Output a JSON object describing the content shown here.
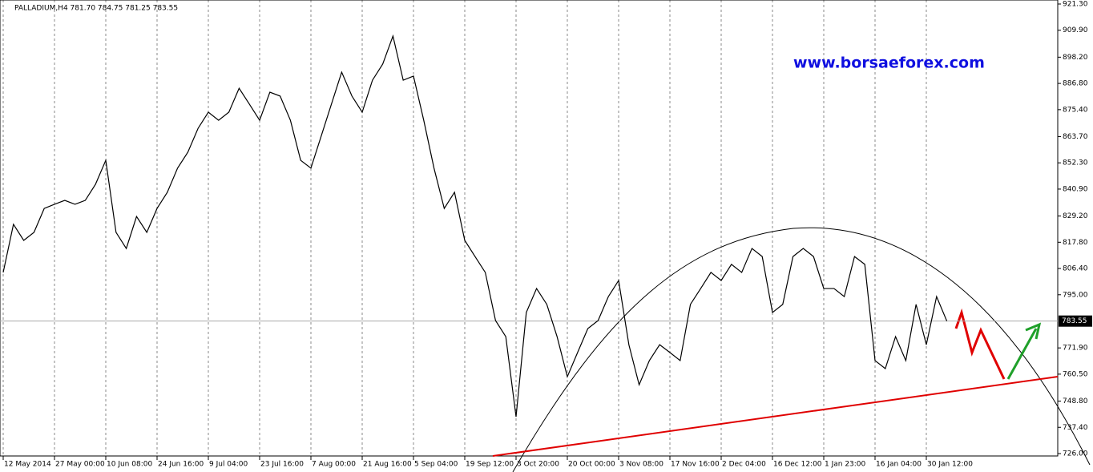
{
  "chart_data": {
    "type": "line",
    "title": "PALLADIUM,H4  781.70 784.75 781.25 783.55",
    "watermark": "www.borsaeforex.com",
    "categories": [
      "12 May 2014",
      null,
      null,
      null,
      null,
      "27 May 00:00",
      null,
      null,
      null,
      null,
      "10 Jun 08:00",
      null,
      null,
      null,
      null,
      "24 Jun 16:00",
      null,
      null,
      null,
      null,
      "9 Jul 04:00",
      null,
      null,
      null,
      null,
      "23 Jul 16:00",
      null,
      null,
      null,
      null,
      "7 Aug 00:00",
      null,
      null,
      null,
      null,
      "21 Aug 16:00",
      null,
      null,
      null,
      null,
      "5 Sep 04:00",
      null,
      null,
      null,
      null,
      "19 Sep 12:00",
      null,
      null,
      null,
      null,
      "3 Oct 20:00",
      null,
      null,
      null,
      null,
      "20 Oct 00:00",
      null,
      null,
      null,
      null,
      "3 Nov 08:00",
      null,
      null,
      null,
      null,
      "17 Nov 16:00",
      null,
      null,
      null,
      null,
      "2 Dec 04:00",
      null,
      null,
      null,
      null,
      "16 Dec 12:00",
      null,
      null,
      null,
      null,
      "1 Jan 23:00",
      null,
      null,
      null,
      null,
      "16 Jan 04:00",
      null,
      null,
      null,
      null,
      "30 Jan 12:00",
      null,
      null
    ],
    "series": [
      {
        "name": "PALLADIUM",
        "color": "#000000",
        "values": [
          804.7,
          825.6,
          818.6,
          822.1,
          832.5,
          834.3,
          836.0,
          834.3,
          836.0,
          843.0,
          853.4,
          822.1,
          815.1,
          829.0,
          822.1,
          832.5,
          839.5,
          850.0,
          856.9,
          867.3,
          874.3,
          870.8,
          874.3,
          884.7,
          877.8,
          870.8,
          883.0,
          881.3,
          870.8,
          853.4,
          850.0,
          863.9,
          877.8,
          891.7,
          881.3,
          874.3,
          888.2,
          895.2,
          907.4,
          888.2,
          890.0,
          870.8,
          850.0,
          832.5,
          839.5,
          818.6,
          811.6,
          804.7,
          783.8,
          776.8,
          742.0,
          787.3,
          797.7,
          790.8,
          776.8,
          759.4,
          769.9,
          780.3,
          783.8,
          794.2,
          801.2,
          773.3,
          755.9,
          766.4,
          773.3,
          769.9,
          766.4,
          790.8,
          797.7,
          804.7,
          801.2,
          808.2,
          804.7,
          815.1,
          811.6,
          787.3,
          790.8,
          811.6,
          815.1,
          811.6,
          797.7,
          797.7,
          794.2,
          811.6,
          808.2,
          766.4,
          762.9,
          776.8,
          766.4,
          790.8,
          773.3,
          794.2,
          783.55
        ]
      }
    ],
    "last_price": 783.55,
    "ylim": [
      726.0,
      921.3
    ],
    "yticks": [
      {
        "value": 921.3,
        "label": "921.30"
      },
      {
        "value": 909.9,
        "label": "909.90"
      },
      {
        "value": 898.2,
        "label": "898.20"
      },
      {
        "value": 886.8,
        "label": "886.80"
      },
      {
        "value": 875.4,
        "label": "875.40"
      },
      {
        "value": 863.7,
        "label": "863.70"
      },
      {
        "value": 852.3,
        "label": "852.30"
      },
      {
        "value": 840.9,
        "label": "840.90"
      },
      {
        "value": 829.2,
        "label": "829.20"
      },
      {
        "value": 817.8,
        "label": "817.80"
      },
      {
        "value": 806.4,
        "label": "806.40"
      },
      {
        "value": 795.0,
        "label": "795.00"
      },
      {
        "value": 771.9,
        "label": "771.90"
      },
      {
        "value": 760.5,
        "label": "760.50"
      },
      {
        "value": 748.8,
        "label": "748.80"
      },
      {
        "value": 737.4,
        "label": "737.40"
      },
      {
        "value": 726.0,
        "label": "726.00"
      }
    ],
    "grid": true
  }
}
